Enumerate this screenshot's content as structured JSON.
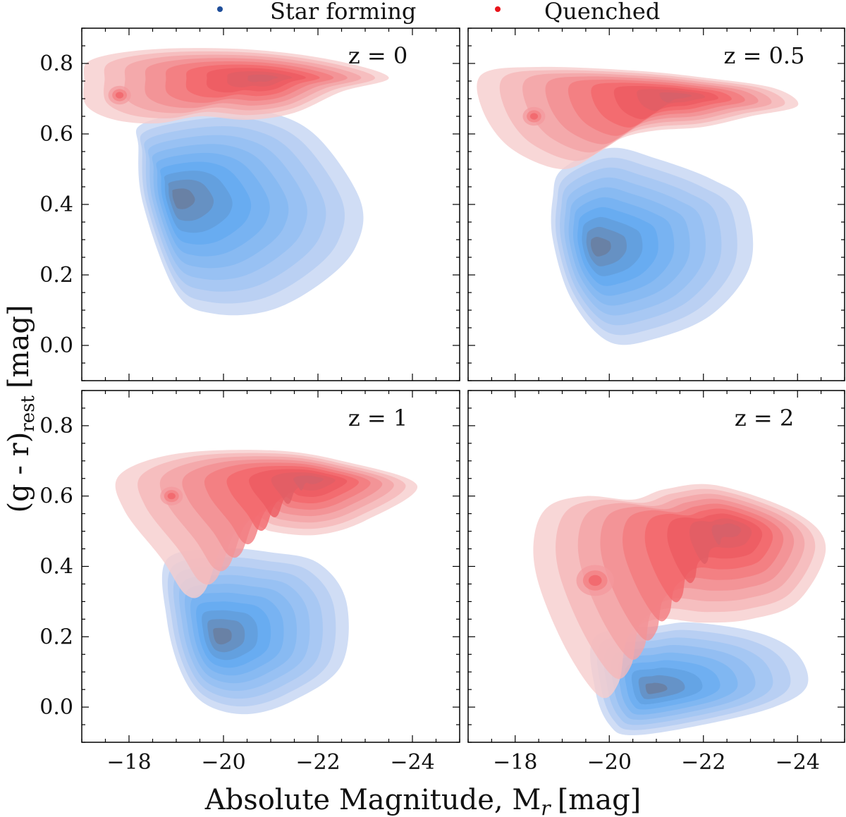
{
  "chart_data": {
    "type": "kde_contour",
    "legend": [
      {
        "name": "Star forming",
        "color": "#1f4e9a"
      },
      {
        "name": "Quenched",
        "color": "#e8141b"
      }
    ],
    "legend_position": "top-center",
    "xlabel": "Absolute Magnitude, M",
    "xlabel_sub": "r",
    "xlabel_unit": "[mag]",
    "ylabel": "(g - r)",
    "ylabel_sub": "rest",
    "ylabel_unit": "[mag]",
    "xlim": [
      -17,
      -25
    ],
    "ylim": [
      -0.1,
      0.9
    ],
    "xticks": [
      -18,
      -20,
      -22,
      -24
    ],
    "xtick_labels": [
      "−18",
      "−20",
      "−22",
      "−24"
    ],
    "yticks": [
      0.0,
      0.2,
      0.4,
      0.6,
      0.8
    ],
    "ytick_labels": [
      "0.0",
      "0.2",
      "0.4",
      "0.6",
      "0.8"
    ],
    "colors": {
      "sf_outer": "#c4d4f3",
      "sf_peak": "#5fa8f0",
      "sf_core": "#6a7d9e",
      "q_outer": "#f6cdcd",
      "q_peak": "#f15a5f",
      "q_core": "#d4606a"
    },
    "panels": [
      {
        "label": "z = 0",
        "quenched": {
          "outline": [
            [
              -17.2,
              0.81
            ],
            [
              -18.5,
              0.84
            ],
            [
              -20.5,
              0.84
            ],
            [
              -22.3,
              0.81
            ],
            [
              -23.5,
              0.76
            ],
            [
              -22.5,
              0.72
            ],
            [
              -21.5,
              0.66
            ],
            [
              -20.5,
              0.64
            ],
            [
              -19.5,
              0.65
            ],
            [
              -18.6,
              0.63
            ],
            [
              -17.7,
              0.64
            ],
            [
              -17.1,
              0.68
            ],
            [
              -17.05,
              0.75
            ]
          ],
          "peaks": [
            [
              -20.9,
              0.76,
              0.022
            ],
            [
              -17.8,
              0.71,
              0.012
            ]
          ],
          "levels": 9
        },
        "star_forming": {
          "outline": [
            [
              -18.3,
              0.63
            ],
            [
              -19.8,
              0.67
            ],
            [
              -21.0,
              0.66
            ],
            [
              -22.0,
              0.59
            ],
            [
              -22.9,
              0.41
            ],
            [
              -22.8,
              0.28
            ],
            [
              -22.1,
              0.18
            ],
            [
              -21.0,
              0.1
            ],
            [
              -19.8,
              0.09
            ],
            [
              -19.0,
              0.15
            ],
            [
              -18.3,
              0.4
            ],
            [
              -18.2,
              0.56
            ]
          ],
          "peaks": [
            [
              -19.0,
              0.42,
              0.06
            ]
          ],
          "levels": 10
        }
      },
      {
        "label": "z = 0.5",
        "quenched": {
          "outline": [
            [
              -17.3,
              0.77
            ],
            [
              -18.5,
              0.79
            ],
            [
              -20.5,
              0.78
            ],
            [
              -22.0,
              0.76
            ],
            [
              -23.5,
              0.73
            ],
            [
              -24.0,
              0.68
            ],
            [
              -23.0,
              0.65
            ],
            [
              -22.0,
              0.62
            ],
            [
              -21.0,
              0.61
            ],
            [
              -20.3,
              0.59
            ],
            [
              -19.8,
              0.55
            ],
            [
              -19.0,
              0.5
            ],
            [
              -17.9,
              0.56
            ],
            [
              -17.3,
              0.67
            ]
          ],
          "peaks": [
            [
              -21.5,
              0.71,
              0.02
            ],
            [
              -18.4,
              0.65,
              0.012
            ]
          ],
          "levels": 9
        },
        "star_forming": {
          "outline": [
            [
              -19.0,
              0.5
            ],
            [
              -20.0,
              0.56
            ],
            [
              -21.0,
              0.53
            ],
            [
              -22.2,
              0.47
            ],
            [
              -22.9,
              0.4
            ],
            [
              -23.0,
              0.23
            ],
            [
              -22.2,
              0.09
            ],
            [
              -21.0,
              0.02
            ],
            [
              -20.0,
              0.01
            ],
            [
              -19.2,
              0.13
            ],
            [
              -18.8,
              0.3
            ],
            [
              -18.8,
              0.42
            ]
          ],
          "peaks": [
            [
              -19.7,
              0.28,
              0.06
            ]
          ],
          "levels": 10
        }
      },
      {
        "label": "z = 1",
        "quenched": {
          "outline": [
            [
              -17.8,
              0.66
            ],
            [
              -19.0,
              0.72
            ],
            [
              -21.0,
              0.73
            ],
            [
              -22.5,
              0.7
            ],
            [
              -24.1,
              0.63
            ],
            [
              -23.0,
              0.53
            ],
            [
              -22.0,
              0.49
            ],
            [
              -21.0,
              0.5
            ],
            [
              -20.5,
              0.53
            ],
            [
              -20.0,
              0.47
            ],
            [
              -19.6,
              0.33
            ],
            [
              -19.2,
              0.32
            ],
            [
              -18.7,
              0.42
            ],
            [
              -17.9,
              0.56
            ]
          ],
          "peaks": [
            [
              -21.9,
              0.65,
              0.02
            ],
            [
              -18.9,
              0.6,
              0.012
            ]
          ],
          "levels": 9
        },
        "star_forming": {
          "outline": [
            [
              -18.8,
              0.42
            ],
            [
              -20.0,
              0.45
            ],
            [
              -21.0,
              0.44
            ],
            [
              -22.0,
              0.41
            ],
            [
              -22.6,
              0.3
            ],
            [
              -22.5,
              0.12
            ],
            [
              -21.5,
              0.02
            ],
            [
              -20.5,
              -0.02
            ],
            [
              -19.6,
              0.01
            ],
            [
              -19.1,
              0.1
            ],
            [
              -18.8,
              0.25
            ]
          ],
          "peaks": [
            [
              -19.9,
              0.2,
              0.05
            ]
          ],
          "levels": 10
        }
      },
      {
        "label": "z = 2",
        "quenched": {
          "outline": [
            [
              -18.7,
              0.57
            ],
            [
              -19.5,
              0.6
            ],
            [
              -20.5,
              0.59
            ],
            [
              -21.2,
              0.62
            ],
            [
              -22.3,
              0.63
            ],
            [
              -24.0,
              0.55
            ],
            [
              -24.6,
              0.45
            ],
            [
              -24.0,
              0.3
            ],
            [
              -23.0,
              0.25
            ],
            [
              -22.0,
              0.24
            ],
            [
              -21.0,
              0.25
            ],
            [
              -20.4,
              0.2
            ],
            [
              -20.2,
              0.07
            ],
            [
              -19.8,
              0.03
            ],
            [
              -19.1,
              0.16
            ],
            [
              -18.5,
              0.35
            ],
            [
              -18.4,
              0.48
            ]
          ],
          "peaks": [
            [
              -22.6,
              0.51,
              0.045
            ],
            [
              -19.7,
              0.36,
              0.02
            ]
          ],
          "levels": 9
        },
        "star_forming": {
          "outline": [
            [
              -19.7,
              0.2
            ],
            [
              -21.0,
              0.23
            ],
            [
              -21.8,
              0.24
            ],
            [
              -23.2,
              0.21
            ],
            [
              -24.0,
              0.15
            ],
            [
              -24.2,
              0.06
            ],
            [
              -23.5,
              0.0
            ],
            [
              -22.0,
              -0.05
            ],
            [
              -20.5,
              -0.08
            ],
            [
              -20.0,
              -0.05
            ],
            [
              -19.7,
              0.05
            ]
          ],
          "peaks": [
            [
              -20.9,
              0.05,
              0.02
            ]
          ],
          "levels": 9
        }
      }
    ]
  }
}
